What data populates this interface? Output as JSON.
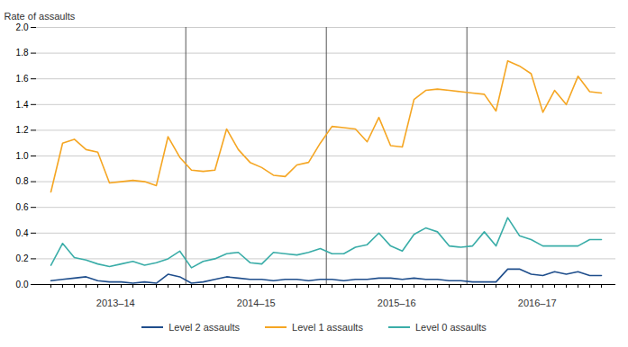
{
  "chart_data": {
    "type": "line",
    "ylabel": "Rate of assaults",
    "categories": [
      null,
      null,
      null,
      null,
      null,
      null,
      null,
      null,
      null,
      null,
      null,
      null,
      null,
      null,
      null,
      null,
      null,
      null,
      null,
      null,
      null,
      null,
      null,
      null,
      null,
      null,
      null,
      null,
      null,
      null,
      null,
      null,
      null,
      null,
      null,
      null,
      null,
      null,
      null,
      null,
      null,
      null,
      null,
      null,
      null,
      null,
      null,
      null
    ],
    "x_groups": [
      "2013–14",
      "2014–15",
      "2015–16",
      "2016–17"
    ],
    "series": [
      {
        "name": "Level 2 assaults",
        "color": "#1F4E8C",
        "values": [
          0.03,
          0.04,
          0.05,
          0.06,
          0.03,
          0.02,
          0.02,
          0.01,
          0.02,
          0.01,
          0.08,
          0.06,
          0.01,
          0.02,
          0.04,
          0.06,
          0.05,
          0.04,
          0.04,
          0.03,
          0.04,
          0.04,
          0.03,
          0.04,
          0.04,
          0.03,
          0.04,
          0.04,
          0.05,
          0.05,
          0.04,
          0.05,
          0.04,
          0.04,
          0.03,
          0.03,
          0.02,
          0.02,
          0.02,
          0.12,
          0.12,
          0.08,
          0.07,
          0.1,
          0.08,
          0.1,
          0.07,
          0.07
        ]
      },
      {
        "name": "Level 1 assaults",
        "color": "#F5A623",
        "values": [
          0.72,
          1.1,
          1.13,
          1.05,
          1.03,
          0.79,
          0.8,
          0.81,
          0.8,
          0.77,
          1.15,
          0.99,
          0.89,
          0.88,
          0.89,
          1.21,
          1.05,
          0.95,
          0.91,
          0.85,
          0.84,
          0.93,
          0.95,
          1.1,
          1.23,
          1.22,
          1.21,
          1.11,
          1.3,
          1.08,
          1.07,
          1.44,
          1.51,
          1.52,
          1.51,
          1.5,
          1.49,
          1.48,
          1.35,
          1.74,
          1.7,
          1.64,
          1.34,
          1.51,
          1.4,
          1.62,
          1.5,
          1.49
        ]
      },
      {
        "name": "Level 0 assaults",
        "color": "#3AADA8",
        "values": [
          0.15,
          0.32,
          0.21,
          0.19,
          0.16,
          0.14,
          0.16,
          0.18,
          0.15,
          0.17,
          0.2,
          0.26,
          0.13,
          0.18,
          0.2,
          0.24,
          0.25,
          0.17,
          0.16,
          0.25,
          0.24,
          0.23,
          0.25,
          0.28,
          0.24,
          0.24,
          0.29,
          0.31,
          0.4,
          0.3,
          0.26,
          0.39,
          0.44,
          0.41,
          0.3,
          0.29,
          0.3,
          0.41,
          0.3,
          0.52,
          0.38,
          0.35,
          0.3,
          0.3,
          0.3,
          0.3,
          0.35,
          0.35
        ]
      }
    ],
    "ylim": [
      0,
      2.0
    ],
    "yticks": [
      {
        "value": 0,
        "label": "0.0"
      },
      0.2,
      0.4,
      0.6,
      0.8,
      {
        "value": 1.0,
        "label": "1.0"
      },
      1.2,
      1.4,
      1.6,
      1.8,
      {
        "value": 2.0,
        "label": "2.0"
      }
    ],
    "grid": true,
    "legend": "bottom",
    "tick_labels": "y"
  }
}
